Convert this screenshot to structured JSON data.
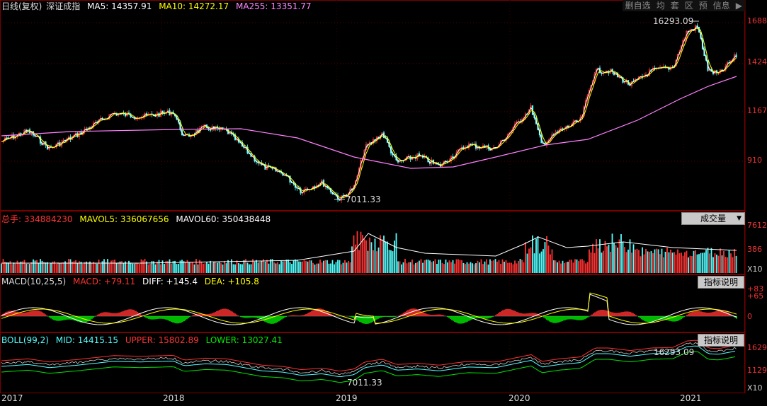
{
  "kline": {
    "legend": {
      "title": "日线(复权)",
      "name": "深证成指",
      "ma5": "MA5: 14357.91",
      "ma10": "MA10: 14272.17",
      "ma255": "MA255: 13351.77"
    },
    "toolbar": [
      "删自选",
      "均",
      "套",
      "区",
      "预",
      "信息",
      "▶"
    ],
    "high_label": "16293.09",
    "low_label": "7011.33",
    "axis": [
      "1688",
      "1424",
      "1167",
      "910"
    ]
  },
  "volume": {
    "legend": {
      "total": "总手: 334884230",
      "mavol5": "MAVOL5: 336067656",
      "mavol60": "MAVOL60: 350438448"
    },
    "button": "成交量",
    "axis": [
      "7612",
      "386",
      "X10"
    ]
  },
  "macd": {
    "legend": {
      "name": "MACD(10,25,5)",
      "macd": "MACD: +79.11",
      "diff": "DIFF: +145.4",
      "dea": "DEA: +105.8"
    },
    "button": "指标说明",
    "axis": [
      "+83",
      "+65",
      "0"
    ]
  },
  "boll": {
    "legend": {
      "name": "BOLL(99,2)",
      "mid": "MID: 14415.15",
      "upper": "UPPER: 15802.89",
      "lower": "LOWER: 13027.41"
    },
    "button": "指标说明",
    "high_label": "16293.09",
    "low_label": "7011.33",
    "axis": [
      "1629",
      "1129",
      "X10"
    ]
  },
  "xaxis": [
    "2017",
    "2018",
    "2019",
    "2020",
    "2021"
  ],
  "colors": {
    "up": "#ff3232",
    "down": "#54ffff",
    "ma5": "#ffffff",
    "ma10": "#ffff00",
    "ma255": "#ff80ff",
    "macd_up": "#ff3232",
    "macd_down": "#00e600",
    "boll_mid": "#54ffff",
    "boll_upper": "#ff3232",
    "boll_lower": "#00e600"
  }
}
